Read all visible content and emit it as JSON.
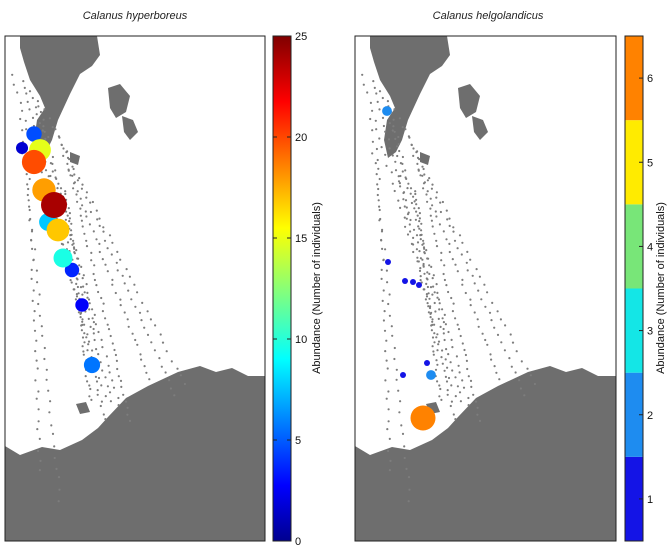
{
  "chart_data": [
    {
      "type": "scatter",
      "title": "Calanus hyperboreus",
      "colorbar": {
        "label": "Abundance (Number of individuals)",
        "range": [
          0,
          25
        ],
        "ticks": [
          0,
          5,
          10,
          15,
          20,
          25
        ],
        "colormap": "jet-continuous"
      },
      "points": [
        {
          "value": 24
        },
        {
          "value": 20
        },
        {
          "value": 18
        },
        {
          "value": 17
        },
        {
          "value": 15
        },
        {
          "value": 10
        },
        {
          "value": 8
        },
        {
          "value": 6
        },
        {
          "value": 5
        },
        {
          "value": 4
        },
        {
          "value": 3
        },
        {
          "value": 2
        },
        {
          "value": 1
        }
      ]
    },
    {
      "type": "scatter",
      "title": "Calanus helgolandicus",
      "colorbar": {
        "label": "Abundance (Number of individuals)",
        "range": [
          0.5,
          6.5
        ],
        "ticks": [
          1,
          2,
          3,
          4,
          5,
          6
        ],
        "colormap": "jet-discrete",
        "colors": [
          "#1414e6",
          "#1e8cf0",
          "#14e6e6",
          "#78e678",
          "#ffeb00",
          "#ff8200"
        ]
      },
      "points": [
        {
          "value": 6
        },
        {
          "value": 2
        },
        {
          "value": 2
        },
        {
          "value": 1
        },
        {
          "value": 1
        },
        {
          "value": 1
        },
        {
          "value": 1
        },
        {
          "value": 1
        },
        {
          "value": 1
        }
      ]
    }
  ],
  "colors": {
    "land": "#6e6e6e",
    "station": "#7d7d7d",
    "frame": "#222222"
  }
}
